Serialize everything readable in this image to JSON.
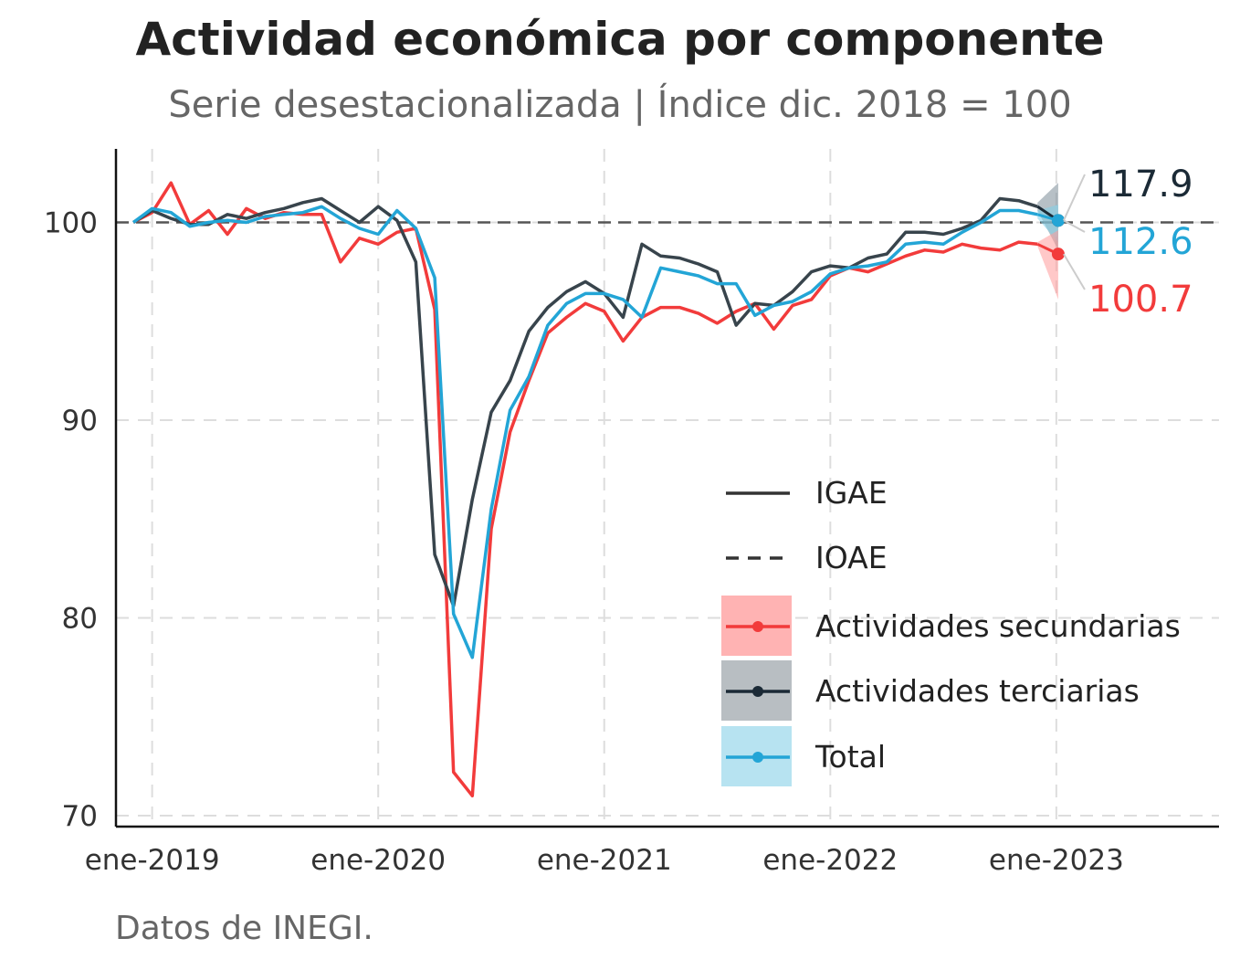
{
  "chart_data": {
    "type": "line",
    "title": "Actividad económica por componente",
    "subtitle": "Serie desestacionalizada | Índice dic. 2018 = 100",
    "caption": "Datos de INEGI.",
    "xlabel": "",
    "ylabel": "",
    "ylim": [
      69.5,
      103.6
    ],
    "yticks": [
      70,
      80,
      90,
      100
    ],
    "x_start": "2018-12",
    "xticks": [
      {
        "label": "ene-2019",
        "index": 1
      },
      {
        "label": "ene-2020",
        "index": 13
      },
      {
        "label": "ene-2021",
        "index": 25
      },
      {
        "label": "ene-2022",
        "index": 37
      },
      {
        "label": "ene-2023",
        "index": 49
      }
    ],
    "x_max_index": 57.4,
    "grid": true,
    "reference_line": {
      "name": "IOAE",
      "value": 100,
      "style": "dashed",
      "color": "#555555"
    },
    "legend": {
      "position": "bottom-right",
      "items": [
        {
          "label": "IGAE",
          "kind": "line-solid",
          "color": "#333333"
        },
        {
          "label": "IOAE",
          "kind": "line-dashed",
          "color": "#333333"
        },
        {
          "label": "Actividades secundarias",
          "kind": "band-point",
          "color": "#f23b3b",
          "band": "#ffb3b3"
        },
        {
          "label": "Actividades terciarias",
          "kind": "band-point",
          "color": "#1b2a36",
          "band": "#b8bec2"
        },
        {
          "label": "Total",
          "kind": "band-point",
          "color": "#23a5d6",
          "band": "#b7e3f1"
        }
      ]
    },
    "series": [
      {
        "name": "Actividades secundarias",
        "color": "#f23b3b",
        "values": [
          100,
          100.5,
          102,
          99.9,
          100.6,
          99.4,
          100.7,
          100.2,
          100.5,
          100.4,
          100.4,
          98.0,
          99.2,
          98.9,
          99.5,
          99.7,
          95.6,
          72.2,
          71.0,
          84.5,
          89.4,
          92.0,
          94.4,
          95.2,
          95.9,
          95.5,
          94.0,
          95.2,
          95.7,
          95.7,
          95.4,
          94.9,
          95.5,
          95.9,
          94.6,
          95.8,
          96.1,
          97.3,
          97.7,
          97.5,
          97.9,
          98.3,
          98.6,
          98.5,
          98.9,
          98.7,
          98.6,
          99.0,
          98.9
        ]
      },
      {
        "name": "Actividades terciarias",
        "color": "#38444c",
        "values": [
          100,
          100.6,
          100.2,
          99.9,
          99.9,
          100.4,
          100.2,
          100.5,
          100.7,
          101.0,
          101.2,
          100.6,
          100.0,
          100.8,
          100.1,
          98.0,
          83.2,
          80.6,
          86.0,
          90.4,
          92.0,
          94.5,
          95.7,
          96.5,
          97.0,
          96.4,
          95.2,
          98.9,
          98.3,
          98.2,
          97.9,
          97.5,
          94.8,
          95.9,
          95.8,
          96.5,
          97.5,
          97.8,
          97.7,
          98.2,
          98.4,
          99.5,
          99.5,
          99.4,
          99.7,
          100.1,
          101.2,
          101.1,
          100.8
        ]
      },
      {
        "name": "Total",
        "color": "#23a5d6",
        "values": [
          100,
          100.7,
          100.5,
          99.8,
          100.0,
          100.1,
          100.0,
          100.3,
          100.4,
          100.5,
          100.8,
          100.2,
          99.7,
          99.4,
          100.6,
          99.7,
          97.2,
          80.2,
          78.0,
          85.5,
          90.5,
          92.2,
          94.8,
          95.9,
          96.4,
          96.4,
          96.1,
          95.2,
          97.7,
          97.5,
          97.3,
          96.9,
          96.9,
          95.3,
          95.8,
          96.0,
          96.5,
          97.4,
          97.7,
          97.8,
          98.0,
          98.9,
          99.0,
          98.9,
          99.5,
          100.0,
          100.6,
          100.6,
          100.4
        ]
      }
    ],
    "forecast": [
      {
        "name": "Actividades terciarias",
        "color": "#1b2a36",
        "band_color": "#7b8d98",
        "from": [
          48,
          100.8
        ],
        "point": [
          49.1,
          100.1
        ],
        "band": {
          "x": [
            48,
            49.1
          ],
          "lower": [
            100.6,
            98.6
          ],
          "upper": [
            101.0,
            102.0
          ]
        }
      },
      {
        "name": "Total",
        "color": "#23a5d6",
        "band_color": "#7fd0ea",
        "from": [
          48,
          100.4
        ],
        "point": [
          49.1,
          100.1
        ],
        "band": {
          "x": [
            48,
            49.1
          ],
          "lower": [
            100.2,
            99.0
          ],
          "upper": [
            100.6,
            100.9
          ]
        }
      },
      {
        "name": "Actividades secundarias",
        "color": "#f23b3b",
        "band_color": "#ff9a9a",
        "from": [
          48,
          98.9
        ],
        "point": [
          49.1,
          98.4
        ],
        "band": {
          "x": [
            48,
            49.1
          ],
          "lower": [
            98.8,
            96.1
          ],
          "upper": [
            99.0,
            99.6
          ]
        }
      }
    ],
    "annotations": [
      {
        "text": "117.9",
        "color": "#1b2a36",
        "target": [
          49.1,
          100.1
        ]
      },
      {
        "text": "112.6",
        "color": "#23a5d6",
        "target": [
          49.1,
          100.1
        ]
      },
      {
        "text": "100.7",
        "color": "#f23b3b",
        "target": [
          49.1,
          98.4
        ]
      }
    ]
  }
}
